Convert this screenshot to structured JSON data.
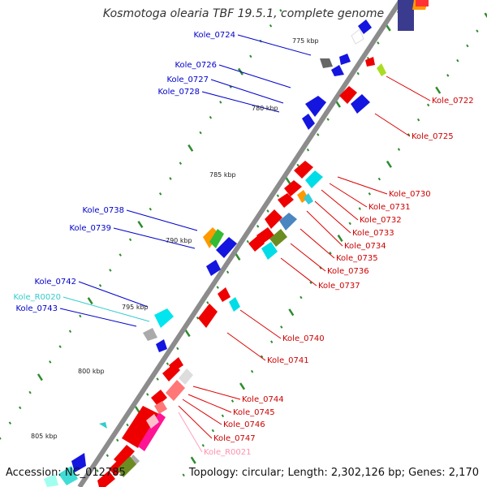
{
  "title": "Kosmotoga olearia TBF 19.5.1, complete genome",
  "footer": {
    "accession": "Accession: NC_012785",
    "topology": "Topology: circular; Length: 2,302,126 bp; Genes: 2,170"
  },
  "colors": {
    "backbone": "#8c8c8c",
    "tick": "#2e8b2e",
    "forward_label": "#0000cc",
    "reverse_label": "#cc0000",
    "rna_forward_label": "#33cccc",
    "rna_reverse_label": "#ff8fb0",
    "label_line_blue": "#0000cc",
    "label_line_red": "#dd0000",
    "label_line_cyan": "#33cccc",
    "label_line_pink": "#ff9ec0"
  },
  "scale_labels": [
    "775 kbp",
    "780 kbp",
    "785 kbp",
    "790 kbp",
    "795 kbp",
    "800 kbp",
    "805 kbp"
  ],
  "forward_genes": [
    "Kole_0724",
    "Kole_0726",
    "Kole_0727",
    "Kole_0728",
    "Kole_0738",
    "Kole_0739",
    "Kole_0742",
    "Kole_R0020",
    "Kole_0743"
  ],
  "reverse_genes": [
    "Kole_0722",
    "Kole_0725",
    "Kole_0730",
    "Kole_0731",
    "Kole_0732",
    "Kole_0733",
    "Kole_0734",
    "Kole_0735",
    "Kole_0736",
    "Kole_0737",
    "Kole_0740",
    "Kole_0741",
    "Kole_0744",
    "Kole_0745",
    "Kole_0746",
    "Kole_0747",
    "Kole_R0021"
  ]
}
